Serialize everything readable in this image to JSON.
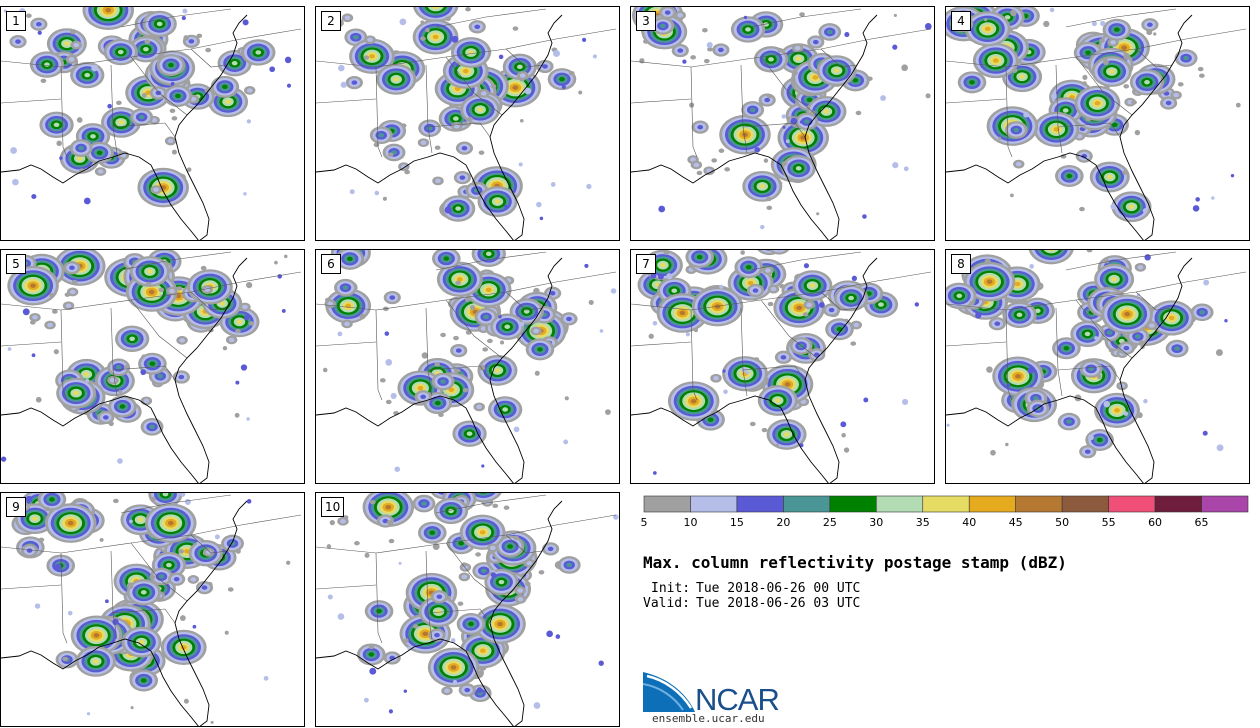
{
  "panels": [
    {
      "label": "1"
    },
    {
      "label": "2"
    },
    {
      "label": "3"
    },
    {
      "label": "4"
    },
    {
      "label": "5"
    },
    {
      "label": "6"
    },
    {
      "label": "7"
    },
    {
      "label": "8"
    },
    {
      "label": "9"
    },
    {
      "label": "10"
    }
  ],
  "colorbar": {
    "ticks": [
      "5",
      "10",
      "15",
      "20",
      "25",
      "30",
      "35",
      "40",
      "45",
      "50",
      "55",
      "60",
      "65"
    ],
    "colors": [
      "#a0a0a0",
      "#b4bee8",
      "#5a5ad7",
      "#4a9696",
      "#008200",
      "#b4dcb4",
      "#e6dc64",
      "#e6aa1e",
      "#b47832",
      "#8c5a3c",
      "#f05078",
      "#6e1e3c",
      "#aa46aa"
    ]
  },
  "title": "Max. column reflectivity postage stamp (dBZ)",
  "init": "Tue 2018-06-26 00 UTC",
  "valid": "Tue 2018-06-26 03 UTC",
  "init_label": "Init:",
  "valid_label": "Valid:",
  "logo_text": "NCAR",
  "site": "ensemble.ucar.edu"
}
